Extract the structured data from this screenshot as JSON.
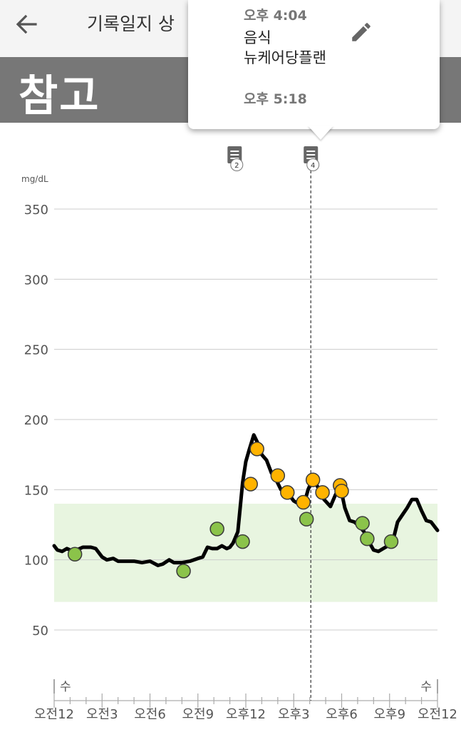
{
  "header": {
    "title": "기록일지 상",
    "back_icon": "arrow-left-icon"
  },
  "banner": {
    "title": "참고"
  },
  "popup": {
    "time1": "오후 4:04",
    "entry_type": "음식",
    "entry_note": "뉴케어당플랜",
    "time2": "오후 5:18",
    "edit_icon": "pencil-icon"
  },
  "chart_data": {
    "type": "line",
    "ylabel": "mg/dL",
    "ylim": [
      0,
      360
    ],
    "yticks": [
      "350",
      "300",
      "250",
      "200",
      "150",
      "100",
      "50"
    ],
    "target_range": [
      70,
      140
    ],
    "x_ticks": [
      "오전12",
      "오전3",
      "오전6",
      "오전9",
      "오후12",
      "오후3",
      "오후6",
      "오후9",
      "오전12"
    ],
    "day_labels": [
      "수",
      "수"
    ],
    "selected_hour": 16.07,
    "note_markers": [
      {
        "x": 11.3,
        "count": "2"
      },
      {
        "x": 16.07,
        "count": "4"
      }
    ],
    "series": [
      {
        "line_color": "#000000",
        "x": [
          0,
          0.2,
          0.5,
          0.8,
          1.2,
          1.8,
          2.3,
          2.6,
          3.0,
          3.3,
          3.7,
          4.0,
          4.5,
          5.0,
          5.5,
          6.0,
          6.5,
          6.8,
          7.2,
          7.5,
          8.0,
          8.5,
          9.0,
          9.3,
          9.6,
          9.9,
          10.2,
          10.5,
          10.8,
          11.0,
          11.2,
          11.5,
          11.8,
          12.0,
          12.2,
          12.5,
          12.8,
          13.0,
          13.3,
          13.6,
          13.9,
          14.2,
          14.5,
          14.8,
          15.0,
          15.3,
          15.6,
          15.9,
          16.2,
          16.6,
          16.9,
          17.3,
          17.6,
          17.9,
          18.2,
          18.5,
          18.8,
          19.1,
          19.4,
          19.7,
          20.0,
          20.3,
          20.6,
          20.9,
          21.2,
          21.5,
          21.8,
          22.1,
          22.4,
          22.7,
          23.0,
          23.3,
          23.6,
          24.0
        ],
        "y": [
          110,
          107,
          106,
          108,
          106,
          109,
          109,
          108,
          102,
          100,
          101,
          99,
          99,
          99,
          98,
          99,
          96,
          97,
          100,
          98,
          98,
          99,
          101,
          102,
          109,
          108,
          108,
          110,
          108,
          109,
          112,
          120,
          155,
          170,
          178,
          189,
          182,
          175,
          171,
          162,
          157,
          150,
          147,
          145,
          142,
          140,
          138,
          150,
          158,
          150,
          143,
          138,
          146,
          153,
          137,
          128,
          127,
          124,
          120,
          113,
          107,
          106,
          108,
          110,
          113,
          127,
          132,
          137,
          143,
          143,
          135,
          128,
          127,
          121
        ]
      }
    ],
    "points_green": {
      "color": "#8bc34a",
      "x": [
        1.3,
        8.1,
        10.2,
        11.8,
        15.8,
        19.3,
        19.6,
        21.1
      ],
      "y": [
        104,
        92,
        122,
        113,
        129,
        126,
        115,
        113
      ]
    },
    "points_orange": {
      "color": "#ffb300",
      "x": [
        12.3,
        12.7,
        14.0,
        14.6,
        15.6,
        16.2,
        16.8,
        17.9,
        18.0
      ],
      "y": [
        154,
        179,
        160,
        148,
        141,
        157,
        148,
        153,
        149
      ]
    },
    "colors": {
      "grid": "#cccccc",
      "target_band": "#e8f5e0",
      "marker_icon": "#666666"
    }
  }
}
